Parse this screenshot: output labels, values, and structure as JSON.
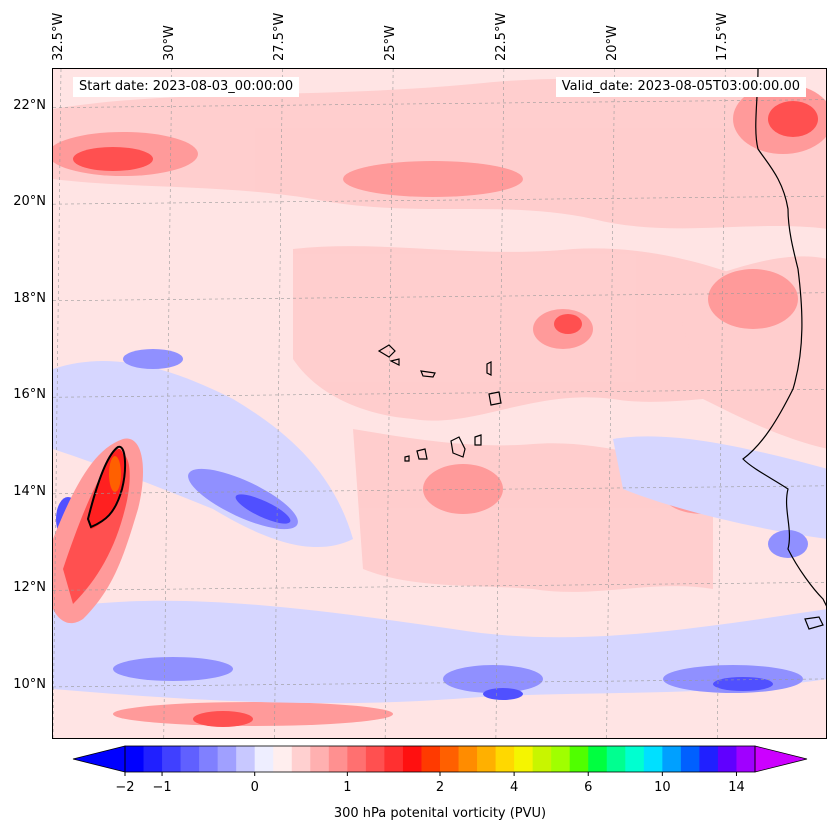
{
  "header": {
    "start_date": "Start date: 2023-08-03_00:00:00",
    "valid_date": "Valid_date: 2023-08-05T03:00:00.00"
  },
  "axes": {
    "lon_labels": [
      "32.5°W",
      "30°W",
      "27.5°W",
      "25°W",
      "22.5°W",
      "20°W",
      "17.5°W"
    ],
    "lon_values": [
      -32.5,
      -30,
      -27.5,
      -25,
      -22.5,
      -20,
      -17.5
    ],
    "lat_labels": [
      "22°N",
      "20°N",
      "18°N",
      "16°N",
      "14°N",
      "12°N",
      "10°N"
    ],
    "lat_values": [
      22,
      20,
      18,
      16,
      14,
      12,
      10
    ],
    "lon_range": [
      -32.5,
      -15
    ],
    "lat_range": [
      8.9,
      22.8
    ],
    "grid": "dashed"
  },
  "colorbar": {
    "title": "300 hPa potenital vorticity (PVU)",
    "tick_labels": [
      "-2",
      "-1",
      "0",
      "1",
      "2",
      "4",
      "6",
      "10",
      "14"
    ],
    "tick_values": [
      -2,
      -1,
      0,
      1,
      2,
      4,
      6,
      10,
      14
    ],
    "extend": "both",
    "colors": [
      "#0000ff",
      "#2020ff",
      "#4040ff",
      "#6060ff",
      "#8080ff",
      "#a0a0ff",
      "#c8c8ff",
      "#eeeeff",
      "#ffeeee",
      "#ffd0d0",
      "#ffb0b0",
      "#ff9090",
      "#ff7070",
      "#ff5050",
      "#ff3030",
      "#ff1010",
      "#ff3a00",
      "#ff6000",
      "#ff8c00",
      "#ffb000",
      "#ffd800",
      "#f5f500",
      "#c8f500",
      "#a0ff00",
      "#50ff00",
      "#00ff40",
      "#00ff90",
      "#00ffd0",
      "#00e0ff",
      "#00a0ff",
      "#0060ff",
      "#2020ff",
      "#6000ff",
      "#a000ff"
    ],
    "under_color": "#0000ff",
    "over_color": "#cc00ff"
  },
  "field_colors": {
    "background": "#ffe4e4",
    "light_red": "#ffcccc",
    "medium_red": "#ff9a9a",
    "strong_red": "#ff5050",
    "core_red": "#ff2020",
    "orange": "#ff6000",
    "light_blue": "#d6d6ff",
    "medium_blue": "#9090ff",
    "deep_blue": "#5050ff"
  }
}
